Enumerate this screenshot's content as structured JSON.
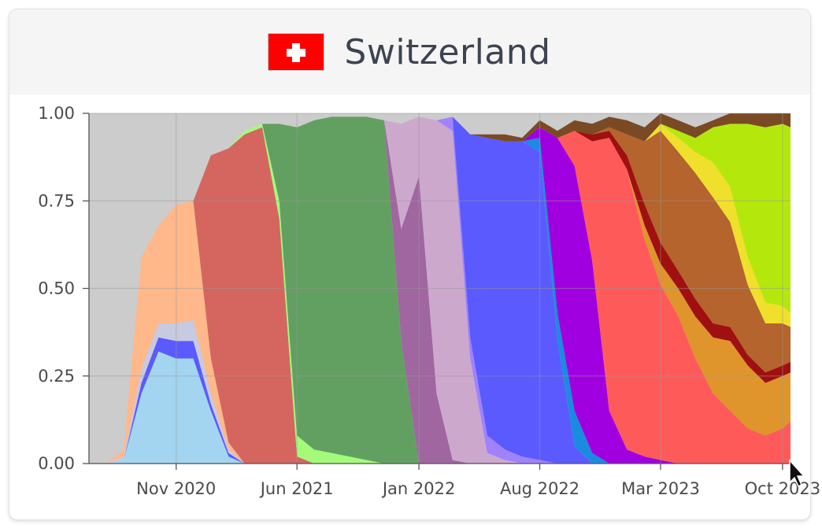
{
  "card": {
    "title": "Switzerland",
    "flag_icon": "swiss-flag-icon"
  },
  "colors": {
    "background": "#cccccc",
    "grid": "#999999"
  },
  "chart_data": {
    "type": "area",
    "stacked": true,
    "normalized": true,
    "title": "Switzerland",
    "xlabel": "",
    "ylabel": "",
    "ylim": [
      0,
      1
    ],
    "xlim": [
      "2020-06-01",
      "2023-10-15"
    ],
    "y_ticks": [
      "1.00",
      "0.75",
      "0.50",
      "0.25",
      "0.00"
    ],
    "y_tick_values": [
      1.0,
      0.75,
      0.5,
      0.25,
      0.0
    ],
    "x_ticks": [
      "Nov 2020",
      "Jun 2021",
      "Jan 2022",
      "Aug 2022",
      "Mar 2023",
      "Oct 2023"
    ],
    "x_tick_dates": [
      "2020-11-01",
      "2021-06-01",
      "2022-01-01",
      "2022-08-01",
      "2023-03-01",
      "2023-10-01"
    ],
    "grid": true,
    "legend": "none",
    "dates": [
      "2020-06-01",
      "2020-07-01",
      "2020-08-01",
      "2020-09-01",
      "2020-10-01",
      "2020-11-01",
      "2020-12-01",
      "2021-01-01",
      "2021-02-01",
      "2021-03-01",
      "2021-04-01",
      "2021-05-01",
      "2021-06-01",
      "2021-07-01",
      "2021-08-01",
      "2021-09-01",
      "2021-10-01",
      "2021-11-01",
      "2021-12-01",
      "2022-01-01",
      "2022-02-01",
      "2022-03-01",
      "2022-04-01",
      "2022-05-01",
      "2022-06-01",
      "2022-07-01",
      "2022-08-01",
      "2022-09-01",
      "2022-10-01",
      "2022-11-01",
      "2022-12-01",
      "2023-01-01",
      "2023-02-01",
      "2023-03-01",
      "2023-04-01",
      "2023-05-01",
      "2023-06-01",
      "2023-07-01",
      "2023-08-01",
      "2023-09-01",
      "2023-10-01",
      "2023-10-15"
    ],
    "series": [
      {
        "color": "#a3d5f0",
        "values": [
          0,
          0,
          0.01,
          0.2,
          0.32,
          0.3,
          0.3,
          0.15,
          0.02,
          0,
          0,
          0,
          0,
          0,
          0,
          0,
          0,
          0,
          0,
          0,
          0,
          0,
          0,
          0,
          0,
          0,
          0,
          0,
          0,
          0,
          0,
          0,
          0,
          0,
          0,
          0,
          0,
          0,
          0,
          0,
          0,
          0
        ]
      },
      {
        "color": "#5a5aff",
        "values": [
          0,
          0,
          0,
          0.03,
          0.04,
          0.05,
          0.05,
          0.02,
          0.01,
          0,
          0,
          0,
          0,
          0,
          0,
          0,
          0,
          0,
          0,
          0,
          0,
          0,
          0,
          0,
          0,
          0,
          0,
          0,
          0,
          0,
          0,
          0,
          0,
          0,
          0,
          0,
          0,
          0,
          0,
          0,
          0,
          0
        ]
      },
      {
        "color": "#c7cae0",
        "values": [
          0,
          0,
          0.01,
          0.04,
          0.04,
          0.05,
          0.06,
          0.03,
          0.01,
          0,
          0,
          0,
          0,
          0,
          0,
          0,
          0,
          0,
          0,
          0,
          0,
          0,
          0,
          0,
          0,
          0,
          0,
          0,
          0,
          0,
          0,
          0,
          0,
          0,
          0,
          0,
          0,
          0,
          0,
          0,
          0,
          0
        ]
      },
      {
        "color": "#ffb88a",
        "values": [
          0,
          0,
          0.02,
          0.32,
          0.28,
          0.34,
          0.34,
          0.1,
          0.02,
          0,
          0,
          0,
          0,
          0,
          0,
          0,
          0,
          0,
          0,
          0,
          0,
          0,
          0,
          0,
          0,
          0,
          0,
          0,
          0,
          0,
          0,
          0,
          0,
          0,
          0,
          0,
          0,
          0,
          0,
          0,
          0,
          0
        ]
      },
      {
        "color": "#d4665f",
        "values": [
          0,
          0,
          0,
          0,
          0,
          0,
          0,
          0.58,
          0.84,
          0.94,
          0.96,
          0.7,
          0.02,
          0,
          0,
          0,
          0,
          0,
          0,
          0,
          0,
          0,
          0,
          0,
          0,
          0,
          0,
          0,
          0,
          0,
          0,
          0,
          0,
          0,
          0,
          0,
          0,
          0,
          0,
          0,
          0,
          0
        ]
      },
      {
        "color": "#a4fb7a",
        "values": [
          0,
          0,
          0,
          0,
          0,
          0,
          0,
          0,
          0,
          0.01,
          0.01,
          0.05,
          0.06,
          0.04,
          0.03,
          0.02,
          0.01,
          0,
          0,
          0,
          0,
          0,
          0,
          0,
          0,
          0,
          0,
          0,
          0,
          0,
          0,
          0,
          0,
          0,
          0,
          0,
          0,
          0,
          0,
          0,
          0,
          0
        ]
      },
      {
        "color": "#62a062",
        "values": [
          0,
          0,
          0,
          0,
          0,
          0,
          0,
          0,
          0,
          0,
          0,
          0.22,
          0.88,
          0.94,
          0.96,
          0.97,
          0.98,
          0.98,
          0.35,
          0,
          0,
          0,
          0,
          0,
          0,
          0,
          0,
          0,
          0,
          0,
          0,
          0,
          0,
          0,
          0,
          0,
          0,
          0,
          0,
          0,
          0,
          0
        ]
      },
      {
        "color": "#a066a0",
        "values": [
          0,
          0,
          0,
          0,
          0,
          0,
          0,
          0,
          0,
          0,
          0,
          0,
          0,
          0,
          0,
          0,
          0,
          0,
          0.32,
          0.82,
          0.2,
          0.01,
          0,
          0,
          0,
          0,
          0,
          0,
          0,
          0,
          0,
          0,
          0,
          0,
          0,
          0,
          0,
          0,
          0,
          0,
          0,
          0
        ]
      },
      {
        "color": "#cda8cd",
        "values": [
          0,
          0,
          0,
          0,
          0,
          0,
          0,
          0,
          0,
          0,
          0,
          0,
          0,
          0,
          0,
          0,
          0,
          0,
          0.3,
          0.17,
          0.78,
          0.94,
          0.3,
          0.03,
          0.01,
          0,
          0,
          0,
          0,
          0,
          0,
          0,
          0,
          0,
          0,
          0,
          0,
          0,
          0,
          0,
          0,
          0
        ]
      },
      {
        "color": "#a082ff",
        "values": [
          0,
          0,
          0,
          0,
          0,
          0,
          0,
          0,
          0,
          0,
          0,
          0,
          0,
          0,
          0,
          0,
          0,
          0,
          0,
          0,
          0,
          0.04,
          0.06,
          0.05,
          0.03,
          0.02,
          0.01,
          0,
          0,
          0,
          0,
          0,
          0,
          0,
          0,
          0,
          0,
          0,
          0,
          0,
          0,
          0
        ]
      },
      {
        "color": "#5a5aff",
        "values": [
          0,
          0,
          0,
          0,
          0,
          0,
          0,
          0,
          0,
          0,
          0,
          0,
          0,
          0,
          0,
          0,
          0,
          0,
          0,
          0,
          0,
          0,
          0.58,
          0.85,
          0.88,
          0.9,
          0.88,
          0.35,
          0.05,
          0,
          0,
          0,
          0,
          0,
          0,
          0,
          0,
          0,
          0,
          0,
          0,
          0
        ]
      },
      {
        "color": "#1a8ce0",
        "values": [
          0,
          0,
          0,
          0,
          0,
          0,
          0,
          0,
          0,
          0,
          0,
          0,
          0,
          0,
          0,
          0,
          0,
          0,
          0,
          0,
          0,
          0,
          0,
          0,
          0,
          0,
          0.04,
          0.08,
          0.1,
          0.03,
          0,
          0,
          0,
          0,
          0,
          0,
          0,
          0,
          0,
          0,
          0,
          0
        ]
      },
      {
        "color": "#a000e0",
        "values": [
          0,
          0,
          0,
          0,
          0,
          0,
          0,
          0,
          0,
          0,
          0,
          0,
          0,
          0,
          0,
          0,
          0,
          0,
          0,
          0,
          0,
          0,
          0,
          0,
          0,
          0,
          0.03,
          0.5,
          0.7,
          0.55,
          0.15,
          0.04,
          0.02,
          0.01,
          0,
          0,
          0,
          0,
          0,
          0,
          0,
          0
        ]
      },
      {
        "color": "#ff5a5a",
        "values": [
          0,
          0,
          0,
          0,
          0,
          0,
          0,
          0,
          0,
          0,
          0,
          0,
          0,
          0,
          0,
          0,
          0,
          0,
          0,
          0,
          0,
          0,
          0,
          0,
          0,
          0,
          0,
          0,
          0.1,
          0.34,
          0.78,
          0.8,
          0.62,
          0.5,
          0.42,
          0.3,
          0.2,
          0.15,
          0.1,
          0.08,
          0.1,
          0.12
        ]
      },
      {
        "color": "#e0942c",
        "values": [
          0,
          0,
          0,
          0,
          0,
          0,
          0,
          0,
          0,
          0,
          0,
          0,
          0,
          0,
          0,
          0,
          0,
          0,
          0,
          0,
          0,
          0,
          0,
          0,
          0,
          0,
          0,
          0,
          0,
          0,
          0,
          0,
          0.04,
          0.06,
          0.08,
          0.12,
          0.16,
          0.2,
          0.18,
          0.15,
          0.15,
          0.14
        ]
      },
      {
        "color": "#a01010",
        "values": [
          0,
          0,
          0,
          0,
          0,
          0,
          0,
          0,
          0,
          0,
          0,
          0,
          0,
          0,
          0,
          0,
          0,
          0,
          0,
          0,
          0,
          0,
          0,
          0,
          0,
          0,
          0,
          0,
          0,
          0.02,
          0.02,
          0.04,
          0.06,
          0.06,
          0.05,
          0.05,
          0.04,
          0.04,
          0.03,
          0.03,
          0.03,
          0.03
        ]
      },
      {
        "color": "#b4642c",
        "values": [
          0,
          0,
          0,
          0,
          0,
          0,
          0,
          0,
          0,
          0,
          0,
          0,
          0,
          0,
          0,
          0,
          0,
          0,
          0,
          0,
          0,
          0,
          0,
          0,
          0,
          0,
          0,
          0,
          0,
          0,
          0.01,
          0.06,
          0.18,
          0.32,
          0.34,
          0.36,
          0.36,
          0.3,
          0.2,
          0.14,
          0.12,
          0.1
        ]
      },
      {
        "color": "#f0e02c",
        "values": [
          0,
          0,
          0,
          0,
          0,
          0,
          0,
          0,
          0,
          0,
          0,
          0,
          0,
          0,
          0,
          0,
          0,
          0,
          0,
          0,
          0,
          0,
          0,
          0,
          0,
          0,
          0,
          0,
          0,
          0,
          0,
          0,
          0,
          0.02,
          0.04,
          0.06,
          0.1,
          0.1,
          0.08,
          0.06,
          0.05,
          0.04
        ]
      },
      {
        "color": "#b4e80c",
        "values": [
          0,
          0,
          0,
          0,
          0,
          0,
          0,
          0,
          0,
          0,
          0,
          0,
          0,
          0,
          0,
          0,
          0,
          0,
          0,
          0,
          0,
          0,
          0,
          0,
          0,
          0,
          0,
          0,
          0,
          0,
          0,
          0,
          0,
          0,
          0.02,
          0.04,
          0.1,
          0.18,
          0.38,
          0.5,
          0.52,
          0.53
        ]
      },
      {
        "color": "#7a4a24",
        "values": [
          0,
          0,
          0,
          0,
          0,
          0,
          0,
          0,
          0,
          0,
          0,
          0,
          0,
          0,
          0,
          0,
          0,
          0,
          0,
          0,
          0,
          0,
          0,
          0.01,
          0.02,
          0.01,
          0.02,
          0.02,
          0.03,
          0.03,
          0.03,
          0.04,
          0.04,
          0.03,
          0.03,
          0.03,
          0.02,
          0.03,
          0.03,
          0.04,
          0.05,
          0.05
        ]
      }
    ]
  }
}
